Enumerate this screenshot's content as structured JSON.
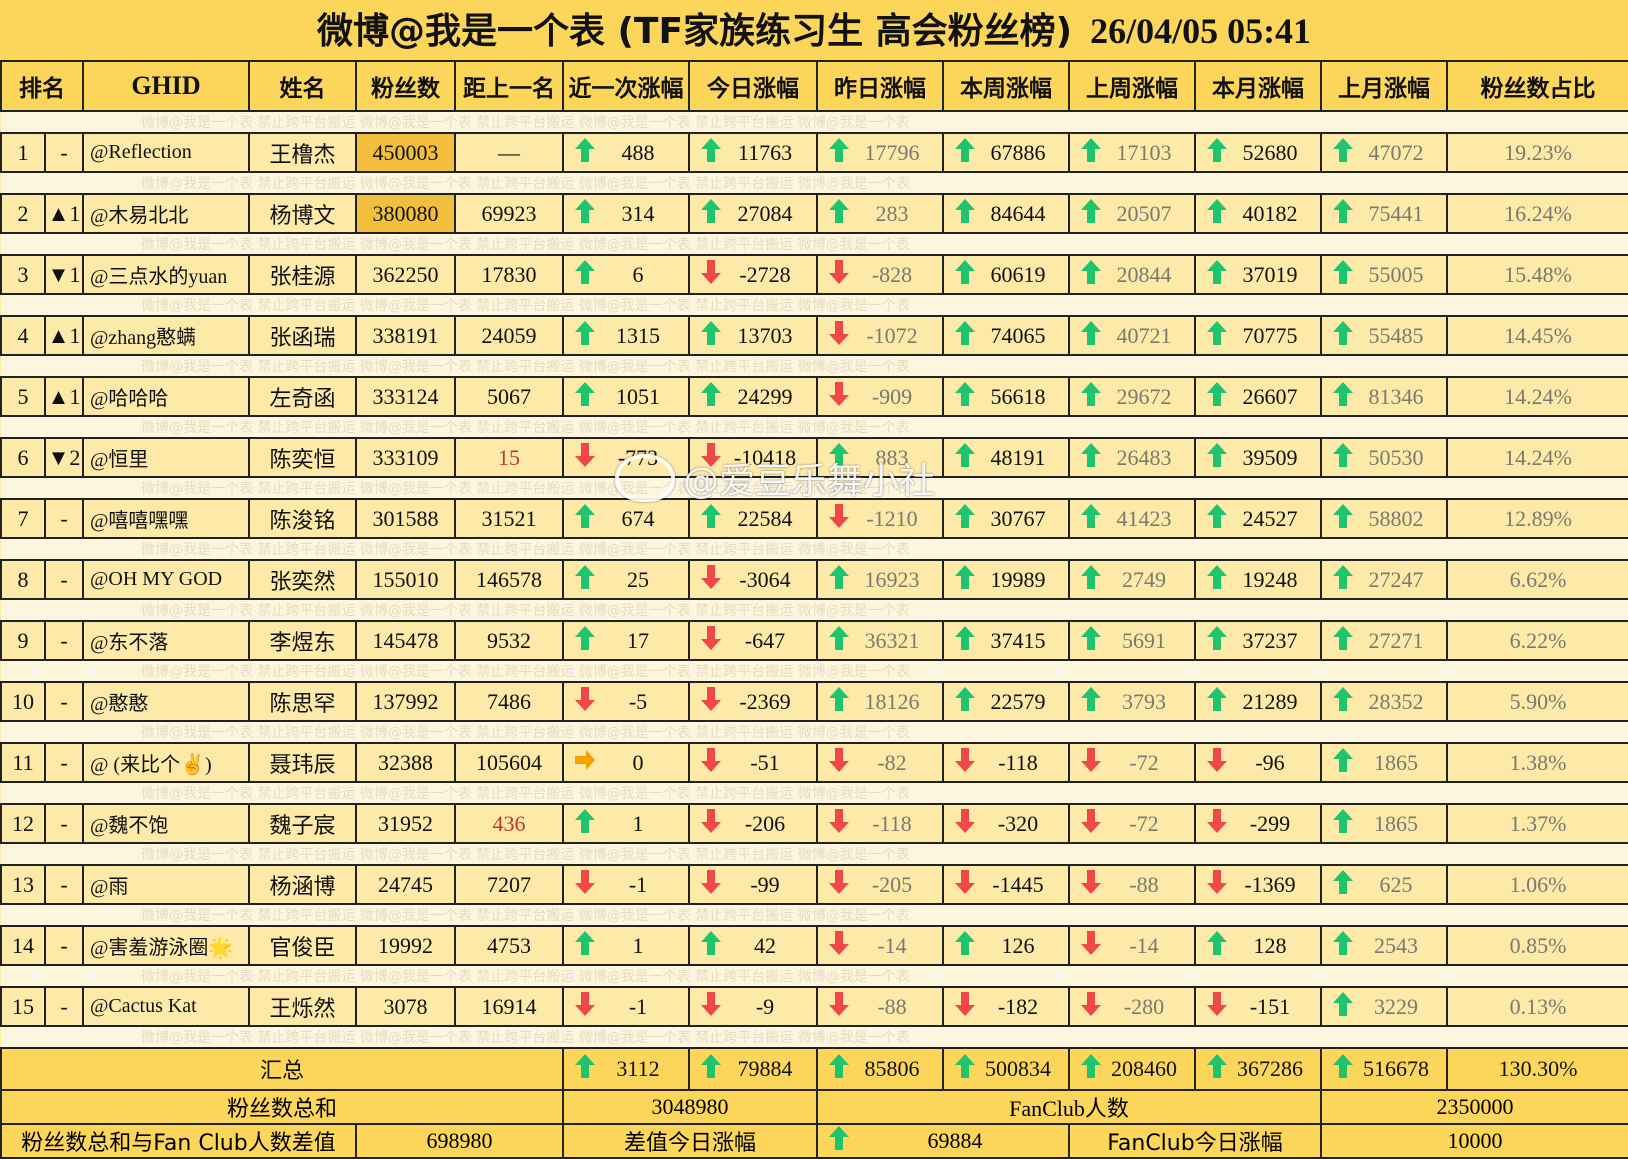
{
  "title": {
    "text": "微博@我是一个表 (TF家族练习生 高会粉丝榜)",
    "timestamp": "26/04/05 05:41"
  },
  "headers": [
    "排名",
    "GHID",
    "姓名",
    "粉丝数",
    "距上一名",
    "近一次涨幅",
    "今日涨幅",
    "昨日涨幅",
    "本周涨幅",
    "上周涨幅",
    "本月涨幅",
    "上月涨幅",
    "粉丝数占比"
  ],
  "watermark": "微博@我是一个表  禁止跨平台搬运  微博@我是一个表  禁止跨平台搬运  微博@我是一个表  禁止跨平台搬运  微博@我是一个表",
  "overlay_watermark": "@爱豆乐舞小社",
  "colors": {
    "header_bg": "#fcd65a",
    "row_bg": "#fde9a8",
    "highlight": "#f2bf3c",
    "up_arrow": "#1fc46e",
    "down_arrow": "#f04848",
    "flat_arrow": "#f5a100",
    "red_text": "#c0392b"
  },
  "rows": [
    {
      "rank": "1",
      "trend": "-",
      "trend_dir": "none",
      "ghid": "@Reflection",
      "name": "王橹杰",
      "fans": "450003",
      "gap": "—",
      "recent": "488",
      "today": "11763",
      "yesterday": "17796",
      "this_week": "67886",
      "last_week": "17103",
      "this_month": "52680",
      "last_month": "47072",
      "share": "19.23%"
    },
    {
      "rank": "2",
      "trend": "▲1",
      "trend_dir": "up",
      "ghid": "@木易北北",
      "name": "杨博文",
      "fans": "380080",
      "gap": "69923",
      "recent": "314",
      "today": "27084",
      "yesterday": "283",
      "this_week": "84644",
      "last_week": "20507",
      "this_month": "40182",
      "last_month": "75441",
      "share": "16.24%"
    },
    {
      "rank": "3",
      "trend": "▼1",
      "trend_dir": "down",
      "ghid": "@三点水的yuan",
      "name": "张桂源",
      "fans": "362250",
      "gap": "17830",
      "recent": "6",
      "today": "-2728",
      "yesterday": "-828",
      "this_week": "60619",
      "last_week": "20844",
      "this_month": "37019",
      "last_month": "55005",
      "share": "15.48%"
    },
    {
      "rank": "4",
      "trend": "▲1",
      "trend_dir": "up",
      "ghid": "@zhang憨螨",
      "name": "张函瑞",
      "fans": "338191",
      "gap": "24059",
      "recent": "1315",
      "today": "13703",
      "yesterday": "-1072",
      "this_week": "74065",
      "last_week": "40721",
      "this_month": "70775",
      "last_month": "55485",
      "share": "14.45%"
    },
    {
      "rank": "5",
      "trend": "▲1",
      "trend_dir": "up",
      "ghid": "@哈哈哈",
      "name": "左奇函",
      "fans": "333124",
      "gap": "5067",
      "recent": "1051",
      "today": "24299",
      "yesterday": "-909",
      "this_week": "56618",
      "last_week": "29672",
      "this_month": "26607",
      "last_month": "81346",
      "share": "14.24%"
    },
    {
      "rank": "6",
      "trend": "▼2",
      "trend_dir": "down",
      "ghid": "@恒里",
      "name": "陈奕恒",
      "fans": "333109",
      "gap": "15",
      "recent": "-773",
      "today": "-10418",
      "yesterday": "883",
      "this_week": "48191",
      "last_week": "26483",
      "this_month": "39509",
      "last_month": "50530",
      "share": "14.24%"
    },
    {
      "rank": "7",
      "trend": "-",
      "trend_dir": "none",
      "ghid": "@嘻嘻嘿嘿",
      "name": "陈浚铭",
      "fans": "301588",
      "gap": "31521",
      "recent": "674",
      "today": "22584",
      "yesterday": "-1210",
      "this_week": "30767",
      "last_week": "41423",
      "this_month": "24527",
      "last_month": "58802",
      "share": "12.89%"
    },
    {
      "rank": "8",
      "trend": "-",
      "trend_dir": "none",
      "ghid": "@OH MY GOD",
      "name": "张奕然",
      "fans": "155010",
      "gap": "146578",
      "recent": "25",
      "today": "-3064",
      "yesterday": "16923",
      "this_week": "19989",
      "last_week": "2749",
      "this_month": "19248",
      "last_month": "27247",
      "share": "6.62%"
    },
    {
      "rank": "9",
      "trend": "-",
      "trend_dir": "none",
      "ghid": "@东不落",
      "name": "李煜东",
      "fans": "145478",
      "gap": "9532",
      "recent": "17",
      "today": "-647",
      "yesterday": "36321",
      "this_week": "37415",
      "last_week": "5691",
      "this_month": "37237",
      "last_month": "27271",
      "share": "6.22%"
    },
    {
      "rank": "10",
      "trend": "-",
      "trend_dir": "none",
      "ghid": "@憨憨",
      "name": "陈思罕",
      "fans": "137992",
      "gap": "7486",
      "recent": "-5",
      "today": "-2369",
      "yesterday": "18126",
      "this_week": "22579",
      "last_week": "3793",
      "this_month": "21289",
      "last_month": "28352",
      "share": "5.90%"
    },
    {
      "rank": "11",
      "trend": "-",
      "trend_dir": "none",
      "ghid": "@ (来比个✌️)",
      "name": "聂玮辰",
      "fans": "32388",
      "gap": "105604",
      "recent": "0",
      "today": "-51",
      "yesterday": "-82",
      "this_week": "-118",
      "last_week": "-72",
      "this_month": "-96",
      "last_month": "1865",
      "share": "1.38%"
    },
    {
      "rank": "12",
      "trend": "-",
      "trend_dir": "none",
      "ghid": "@魏不饱",
      "name": "魏子宸",
      "fans": "31952",
      "gap": "436",
      "recent": "1",
      "today": "-206",
      "yesterday": "-118",
      "this_week": "-320",
      "last_week": "-72",
      "this_month": "-299",
      "last_month": "1865",
      "share": "1.37%"
    },
    {
      "rank": "13",
      "trend": "-",
      "trend_dir": "none",
      "ghid": "@雨",
      "name": "杨涵博",
      "fans": "24745",
      "gap": "7207",
      "recent": "-1",
      "today": "-99",
      "yesterday": "-205",
      "this_week": "-1445",
      "last_week": "-88",
      "this_month": "-1369",
      "last_month": "625",
      "share": "1.06%"
    },
    {
      "rank": "14",
      "trend": "-",
      "trend_dir": "none",
      "ghid": "@害羞游泳圈🌟",
      "name": "官俊臣",
      "fans": "19992",
      "gap": "4753",
      "recent": "1",
      "today": "42",
      "yesterday": "-14",
      "this_week": "126",
      "last_week": "-14",
      "this_month": "128",
      "last_month": "2543",
      "share": "0.85%"
    },
    {
      "rank": "15",
      "trend": "-",
      "trend_dir": "none",
      "ghid": "@Cactus Kat",
      "name": "王烁然",
      "fans": "3078",
      "gap": "16914",
      "recent": "-1",
      "today": "-9",
      "yesterday": "-88",
      "this_week": "-182",
      "last_week": "-280",
      "this_month": "-151",
      "last_month": "3229",
      "share": "0.13%"
    }
  ],
  "summary": {
    "label": "汇总",
    "recent": "3112",
    "today": "79884",
    "yesterday": "85806",
    "this_week": "500834",
    "last_week": "208460",
    "this_month": "367286",
    "last_month": "516678",
    "share": "130.30%"
  },
  "totals": {
    "fans_sum_label": "粉丝数总和",
    "fans_sum": "3048980",
    "fanclub_label": "FanClub人数",
    "fanclub_count": "2350000",
    "diff_label": "粉丝数总和与Fan Club人数差值",
    "diff": "698980",
    "diff_today_label": "差值今日涨幅",
    "diff_today": "69884",
    "fanclub_today_label": "FanClub今日涨幅",
    "fanclub_today": "10000"
  }
}
